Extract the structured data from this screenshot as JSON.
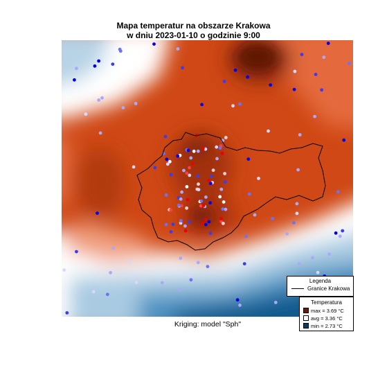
{
  "title": {
    "line1": "Mapa temperatur na obszarze Krakowa",
    "line2": "w dniu 2023-01-10 o godzinie 9:00"
  },
  "caption": "Kriging: model \"Sph\"",
  "legend": {
    "title": "Legenda",
    "boundary_label": "Granice Krakowa"
  },
  "temperature_legend": {
    "title": "Temperatura",
    "rows": [
      {
        "label": "max = ",
        "value": "3.69",
        "unit": " °C",
        "color": "#6b1a05"
      },
      {
        "label": "avg = ",
        "value": "3.36",
        "unit": " °C",
        "color": "#ffffff"
      },
      {
        "label": "min = ",
        "value": "2.73",
        "unit": " °C",
        "color": "#0a3d62"
      }
    ]
  },
  "chart_data": {
    "type": "heatmap",
    "title": "Mapa temperatur na obszarze Krakowa w dniu 2023-01-10 o godzinie 9:00",
    "xlabel": "",
    "ylabel": "",
    "value_range": [
      2.73,
      3.69
    ],
    "mean": 3.36,
    "colormap": [
      "#0b4a78",
      "#6ba7cc",
      "#ffffff",
      "#e8704a",
      "#c23a08",
      "#6b1a05"
    ],
    "legend_position": "bottom-right"
  }
}
